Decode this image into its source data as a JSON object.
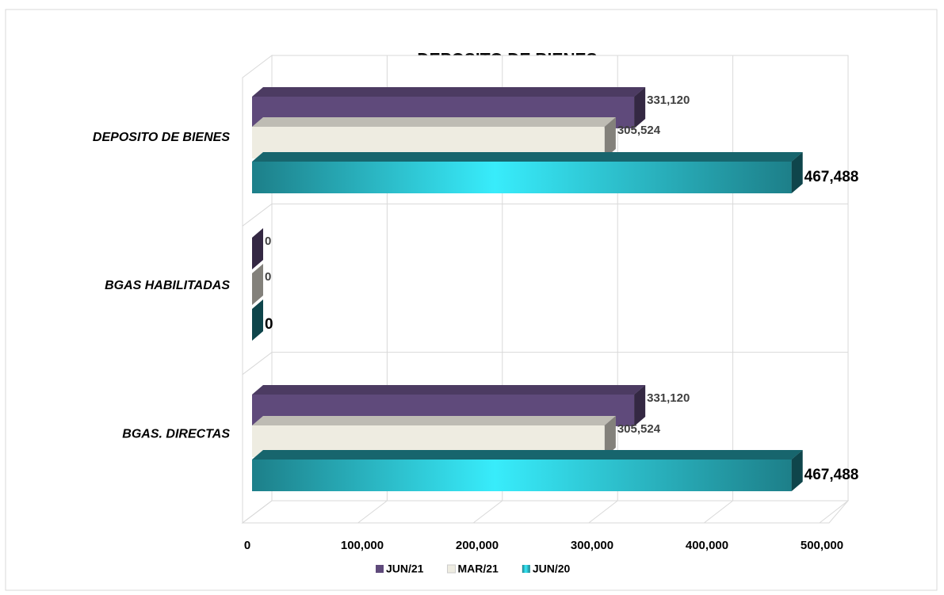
{
  "chart_data": {
    "type": "bar3d_horizontal",
    "title": "DEPOSITO DE BIENES",
    "categories": [
      "DEPOSITO DE BIENES",
      "BGAS HABILITADAS",
      "BGAS. DIRECTAS"
    ],
    "series": [
      {
        "name": "JUN/21",
        "color": "#5f4a7b",
        "values": [
          331120,
          0,
          331120
        ],
        "value_labels": [
          "331,120",
          "0",
          "331,120"
        ]
      },
      {
        "name": "MAR/21",
        "color": "#eeece1",
        "values": [
          305524,
          0,
          305524
        ],
        "value_labels": [
          "305,524",
          "0",
          "305,524"
        ]
      },
      {
        "name": "JUN/20",
        "color": "#1d7f89",
        "values": [
          467488,
          0,
          467488
        ],
        "value_labels": [
          "467,488",
          "0",
          "467,488"
        ]
      }
    ],
    "xlim": [
      0,
      500000
    ],
    "xticks": [
      0,
      {
        "value": 100000,
        "label": "100,000"
      },
      {
        "value": 200000,
        "label": "200,000"
      },
      {
        "value": 300000,
        "label": "300,000"
      },
      {
        "value": 400000,
        "label": "400,000"
      },
      {
        "value": 500000,
        "label": "500,000"
      }
    ],
    "grid": true,
    "legend": "bottom"
  }
}
